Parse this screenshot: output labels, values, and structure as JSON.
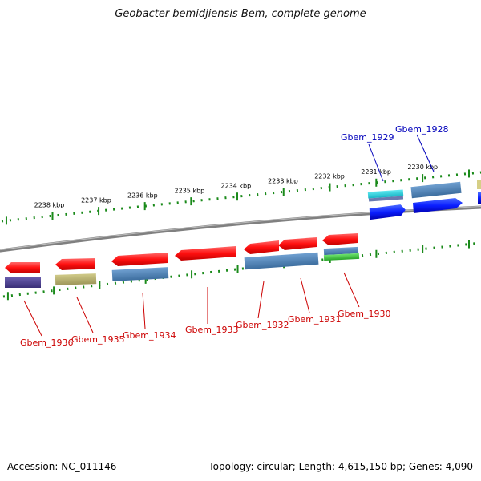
{
  "title": "Geobacter bemidjiensis Bem, complete genome",
  "footer": {
    "accession": "Accession: NC_011146",
    "summary": "Topology: circular; Length: 4,615,150 bp; Genes: 4,090"
  },
  "colors": {
    "forward_label": "#0000bb",
    "reverse_label": "#cc0000",
    "ruler": "#1a8a1a",
    "backbone": "#808080"
  },
  "ruler_labels": [
    "2238 kbp",
    "2237 kbp",
    "2236 kbp",
    "2235 kbp",
    "2234 kbp",
    "2233 kbp",
    "2232 kbp",
    "2231 kbp",
    "2230 kbp"
  ],
  "forward_genes": [
    {
      "label": "Gbem_1929",
      "color": "#1e3cff"
    },
    {
      "label": "Gbem_1928",
      "color": "#1e3cff"
    }
  ],
  "reverse_genes": [
    {
      "label": "Gbem_1936",
      "color": "#ff1a1a",
      "product_color": "#4a3f8a"
    },
    {
      "label": "Gbem_1935",
      "color": "#ff1a1a",
      "product_color": "#b5ae6a"
    },
    {
      "label": "Gbem_1934",
      "color": "#ff1a1a",
      "product_color": "#4a7fb5"
    },
    {
      "label": "Gbem_1933",
      "color": "#ff1a1a",
      "product_color": ""
    },
    {
      "label": "Gbem_1932",
      "color": "#ff1a1a",
      "product_color": "#4a7fb5"
    },
    {
      "label": "Gbem_1931",
      "color": "#ff1a1a",
      "product_color": ""
    },
    {
      "label": "Gbem_1930",
      "color": "#ff1a1a",
      "product_color": "#3fbf3f"
    }
  ]
}
